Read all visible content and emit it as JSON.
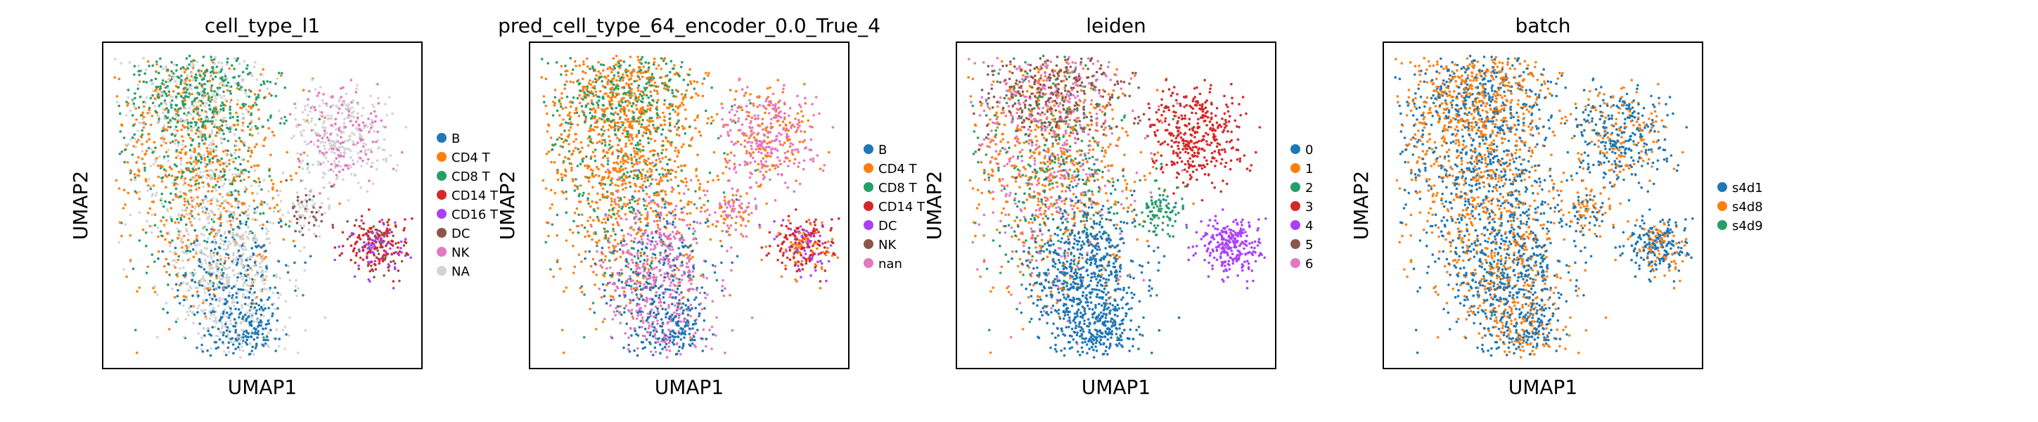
{
  "chart_data": [
    {
      "type": "scatter",
      "title": "cell_type_l1",
      "xlabel": "UMAP1",
      "ylabel": "UMAP2",
      "ticks": false,
      "legend_location": "right",
      "categories": [
        {
          "name": "B",
          "color": "#1f77b4"
        },
        {
          "name": "CD4 T",
          "color": "#ff7f0e"
        },
        {
          "name": "CD8 T",
          "color": "#279e68"
        },
        {
          "name": "CD14 T",
          "color": "#d62728"
        },
        {
          "name": "CD16 T",
          "color": "#aa40fc"
        },
        {
          "name": "DC",
          "color": "#8c564b"
        },
        {
          "name": "NK",
          "color": "#e377c2"
        },
        {
          "name": "NA",
          "color": "#d3d3d3"
        }
      ]
    },
    {
      "type": "scatter",
      "title": "pred_cell_type_64_encoder_0.0_True_4",
      "xlabel": "UMAP1",
      "ylabel": "UMAP2",
      "ticks": false,
      "legend_location": "right",
      "categories": [
        {
          "name": "B",
          "color": "#1f77b4"
        },
        {
          "name": "CD4 T",
          "color": "#ff7f0e"
        },
        {
          "name": "CD8 T",
          "color": "#279e68"
        },
        {
          "name": "CD14 T",
          "color": "#d62728"
        },
        {
          "name": "DC",
          "color": "#aa40fc"
        },
        {
          "name": "NK",
          "color": "#8c564b"
        },
        {
          "name": "nan",
          "color": "#e377c2"
        }
      ]
    },
    {
      "type": "scatter",
      "title": "leiden",
      "xlabel": "UMAP1",
      "ylabel": "UMAP2",
      "ticks": false,
      "legend_location": "right",
      "categories": [
        {
          "name": "0",
          "color": "#1f77b4"
        },
        {
          "name": "1",
          "color": "#ff7f0e"
        },
        {
          "name": "2",
          "color": "#279e68"
        },
        {
          "name": "3",
          "color": "#d62728"
        },
        {
          "name": "4",
          "color": "#aa40fc"
        },
        {
          "name": "5",
          "color": "#8c564b"
        },
        {
          "name": "6",
          "color": "#e377c2"
        }
      ]
    },
    {
      "type": "scatter",
      "title": "batch",
      "xlabel": "UMAP1",
      "ylabel": "UMAP2",
      "ticks": false,
      "legend_location": "right",
      "categories": [
        {
          "name": "s4d1",
          "color": "#1f77b4"
        },
        {
          "name": "s4d8",
          "color": "#ff7f0e"
        },
        {
          "name": "s4d9",
          "color": "#279e68"
        }
      ]
    }
  ]
}
